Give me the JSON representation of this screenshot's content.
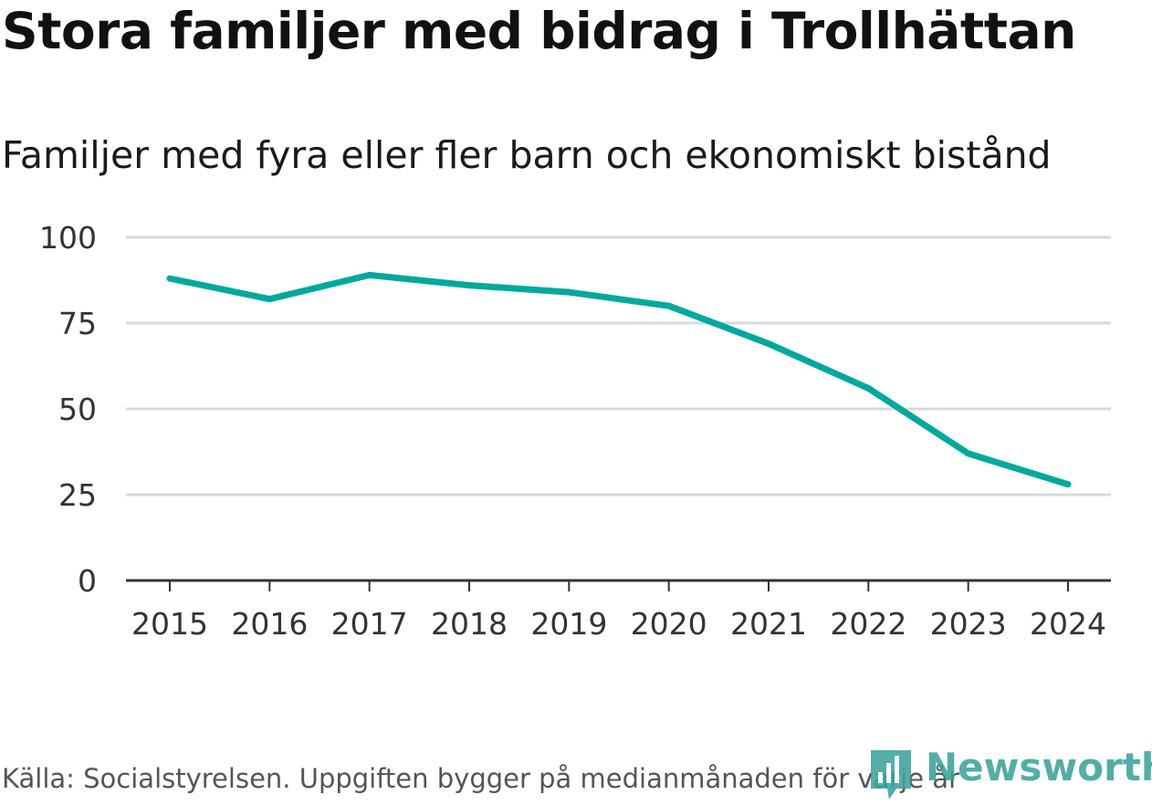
{
  "title": "Stora familjer med bidrag i Trollhättan",
  "subtitle": "Familjer med fyra eller fler barn och ekonomiskt bistånd",
  "source": "Källa: Socialstyrelsen. Uppgiften bygger på medianmånaden för varje år",
  "logo_text": "Newsworthy",
  "colors": {
    "line": "#00a99d",
    "grid": "#d9d9d9",
    "axis": "#333333",
    "logo": "#3aa39a"
  },
  "chart_data": {
    "type": "line",
    "title": "Stora familjer med bidrag i Trollhättan",
    "subtitle": "Familjer med fyra eller fler barn och ekonomiskt bistånd",
    "xlabel": "",
    "ylabel": "",
    "categories": [
      "2015",
      "2016",
      "2017",
      "2018",
      "2019",
      "2020",
      "2021",
      "2022",
      "2023",
      "2024"
    ],
    "series": [
      {
        "name": "Familjer med fyra eller fler barn och ekonomiskt bistånd",
        "values": [
          88,
          82,
          89,
          86,
          84,
          80,
          69,
          56,
          37,
          28
        ]
      }
    ],
    "ylim": [
      0,
      100
    ],
    "yticks": [
      0,
      25,
      50,
      75,
      100
    ],
    "ytick_labels": [
      "0",
      "25",
      "50",
      "75",
      "100"
    ],
    "grid": true,
    "legend": "none"
  }
}
